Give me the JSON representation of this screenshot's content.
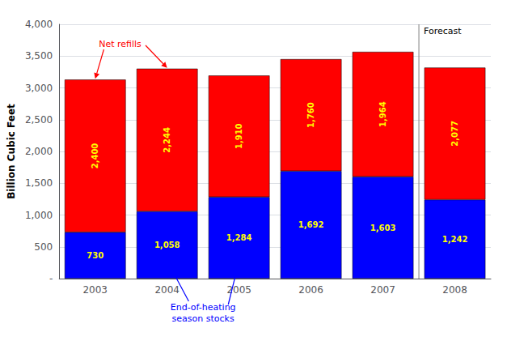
{
  "chart_data": {
    "type": "bar",
    "stacked": true,
    "grid": true,
    "data_labels": true,
    "ylabel": "Billion Cubic Feet",
    "categories": [
      "2003",
      "2004",
      "2005",
      "2006",
      "2007",
      "2008"
    ],
    "series": [
      {
        "color": "#0000FF",
        "values": [
          730,
          1058,
          1284,
          1692,
          1603,
          1242
        ],
        "value_labels": [
          "730",
          "1,058",
          "1,284",
          "1,692",
          "1,603",
          "1,242"
        ]
      },
      {
        "color": "#FF0000",
        "values": [
          2400,
          2244,
          1910,
          1760,
          1964,
          2077
        ],
        "value_labels": [
          "2,400",
          "2,244",
          "1,910",
          "1,760",
          "1,964",
          "2,077"
        ]
      }
    ],
    "ylim": [
      0,
      4000
    ],
    "yticks": [
      {
        "value": 0,
        "label": "-"
      },
      500,
      {
        "value": 1000,
        "label": "1,000"
      },
      {
        "value": 1500,
        "label": "1,500"
      },
      {
        "value": 2000,
        "label": "2,000"
      },
      {
        "value": 2500,
        "label": "2,500"
      },
      {
        "value": 3000,
        "label": "3,000"
      },
      {
        "value": 3500,
        "label": "3,500"
      },
      {
        "value": 4000,
        "label": "4,000"
      }
    ],
    "annotations": [
      "Forecast",
      "Net refills",
      "End-of-heating\nseason stocks"
    ]
  }
}
